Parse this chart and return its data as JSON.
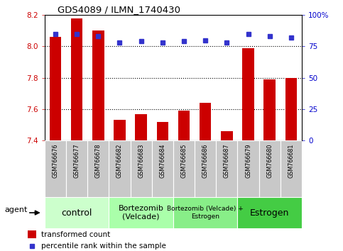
{
  "title": "GDS4089 / ILMN_1740430",
  "samples": [
    "GSM766676",
    "GSM766677",
    "GSM766678",
    "GSM766682",
    "GSM766683",
    "GSM766684",
    "GSM766685",
    "GSM766686",
    "GSM766687",
    "GSM766679",
    "GSM766680",
    "GSM766681"
  ],
  "transformed_count": [
    8.06,
    8.18,
    8.1,
    7.53,
    7.57,
    7.52,
    7.59,
    7.64,
    7.46,
    7.99,
    7.79,
    7.8
  ],
  "percentile_rank": [
    85,
    85,
    83,
    78,
    79,
    78,
    79,
    80,
    78,
    85,
    83,
    82
  ],
  "ylim_left": [
    7.4,
    8.2
  ],
  "ylim_right": [
    0,
    100
  ],
  "yticks_left": [
    7.4,
    7.6,
    7.8,
    8.0,
    8.2
  ],
  "yticks_right": [
    0,
    25,
    50,
    75,
    100
  ],
  "ytick_labels_right": [
    "0",
    "25",
    "50",
    "75",
    "100%"
  ],
  "bar_color": "#CC0000",
  "dot_color": "#3333CC",
  "groups": [
    {
      "label": "control",
      "start": 0,
      "end": 3,
      "color": "#CCFFCC",
      "fontsize": 9
    },
    {
      "label": "Bortezomib\n(Velcade)",
      "start": 3,
      "end": 6,
      "color": "#AAFFAA",
      "fontsize": 8
    },
    {
      "label": "Bortezomib (Velcade) +\nEstrogen",
      "start": 6,
      "end": 9,
      "color": "#88EE88",
      "fontsize": 6.5
    },
    {
      "label": "Estrogen",
      "start": 9,
      "end": 12,
      "color": "#44CC44",
      "fontsize": 9
    }
  ],
  "agent_label": "agent",
  "legend_bar_label": "transformed count",
  "legend_dot_label": "percentile rank within the sample",
  "tick_label_color_left": "#CC0000",
  "tick_label_color_right": "#0000CC",
  "grid_yticks": [
    7.6,
    7.8,
    8.0
  ]
}
